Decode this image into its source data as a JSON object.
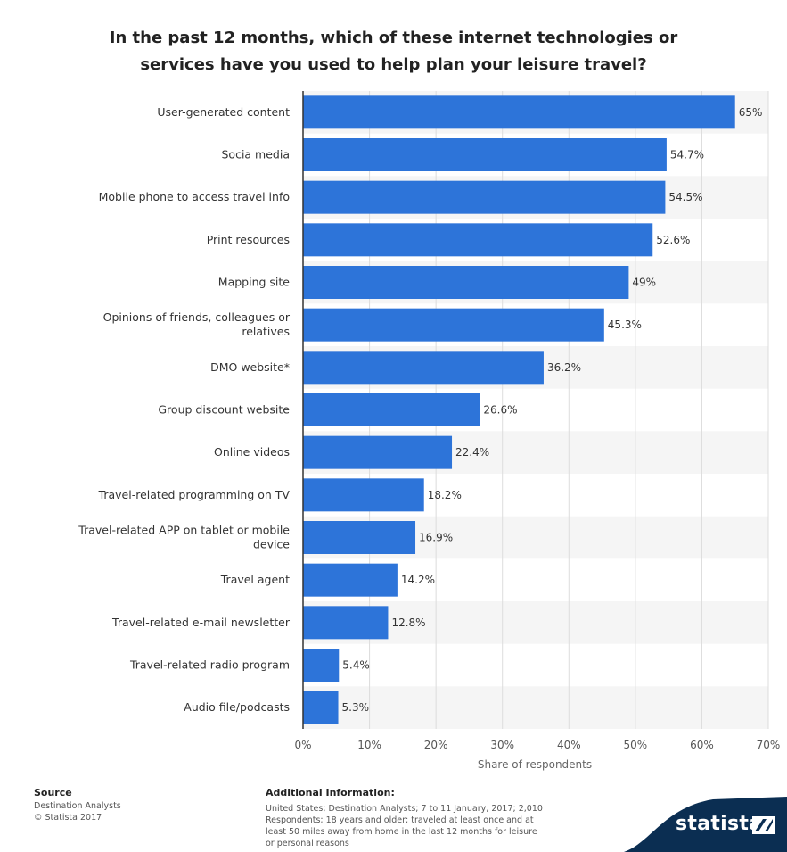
{
  "chart_data": {
    "type": "bar",
    "orientation": "horizontal",
    "title_lines": [
      "In the past 12 months, which of these internet technologies or",
      "services have you used to help plan your leisure travel?"
    ],
    "categories": [
      [
        "User-generated content"
      ],
      [
        "Socia media"
      ],
      [
        "Mobile phone to access travel info"
      ],
      [
        "Print resources"
      ],
      [
        "Mapping site"
      ],
      [
        "Opinions of friends, colleagues or",
        "relatives"
      ],
      [
        "DMO website*"
      ],
      [
        "Group discount website"
      ],
      [
        "Online videos"
      ],
      [
        "Travel-related programming on TV"
      ],
      [
        "Travel-related APP on tablet or mobile",
        "device"
      ],
      [
        "Travel agent"
      ],
      [
        "Travel-related e-mail newsletter"
      ],
      [
        "Travel-related radio program"
      ],
      [
        "Audio file/podcasts"
      ]
    ],
    "values": [
      65,
      54.7,
      54.5,
      52.6,
      49,
      45.3,
      36.2,
      26.6,
      22.4,
      18.2,
      16.9,
      14.2,
      12.8,
      5.4,
      5.3
    ],
    "value_labels": [
      "65%",
      "54.7%",
      "54.5%",
      "52.6%",
      "49%",
      "45.3%",
      "36.2%",
      "26.6%",
      "22.4%",
      "18.2%",
      "16.9%",
      "14.2%",
      "12.8%",
      "5.4%",
      "5.3%"
    ],
    "xlim": [
      0,
      70
    ],
    "xticks": [
      0,
      10,
      20,
      30,
      40,
      50,
      60,
      70
    ],
    "xtick_labels": [
      "0%",
      "10%",
      "20%",
      "30%",
      "40%",
      "50%",
      "60%",
      "70%"
    ],
    "xlabel": "Share of respondents",
    "grid": true,
    "bar_color": "#2d74d9",
    "band_color": "#f5f5f5"
  },
  "footer": {
    "source_heading": "Source",
    "source_name": "Destination Analysts",
    "copyright": "© Statista 2017",
    "additional_heading": "Additional Information:",
    "additional_lines": [
      "United States; Destination Analysts; 7 to 11 January, 2017; 2,010",
      "Respondents; 18 years and older; traveled at least once and at",
      "least 50 miles away from home in the last 12 months for leisure",
      "or personal reasons"
    ]
  },
  "branding": {
    "logo_text": "statista",
    "logo_color": "#0b2e52"
  }
}
